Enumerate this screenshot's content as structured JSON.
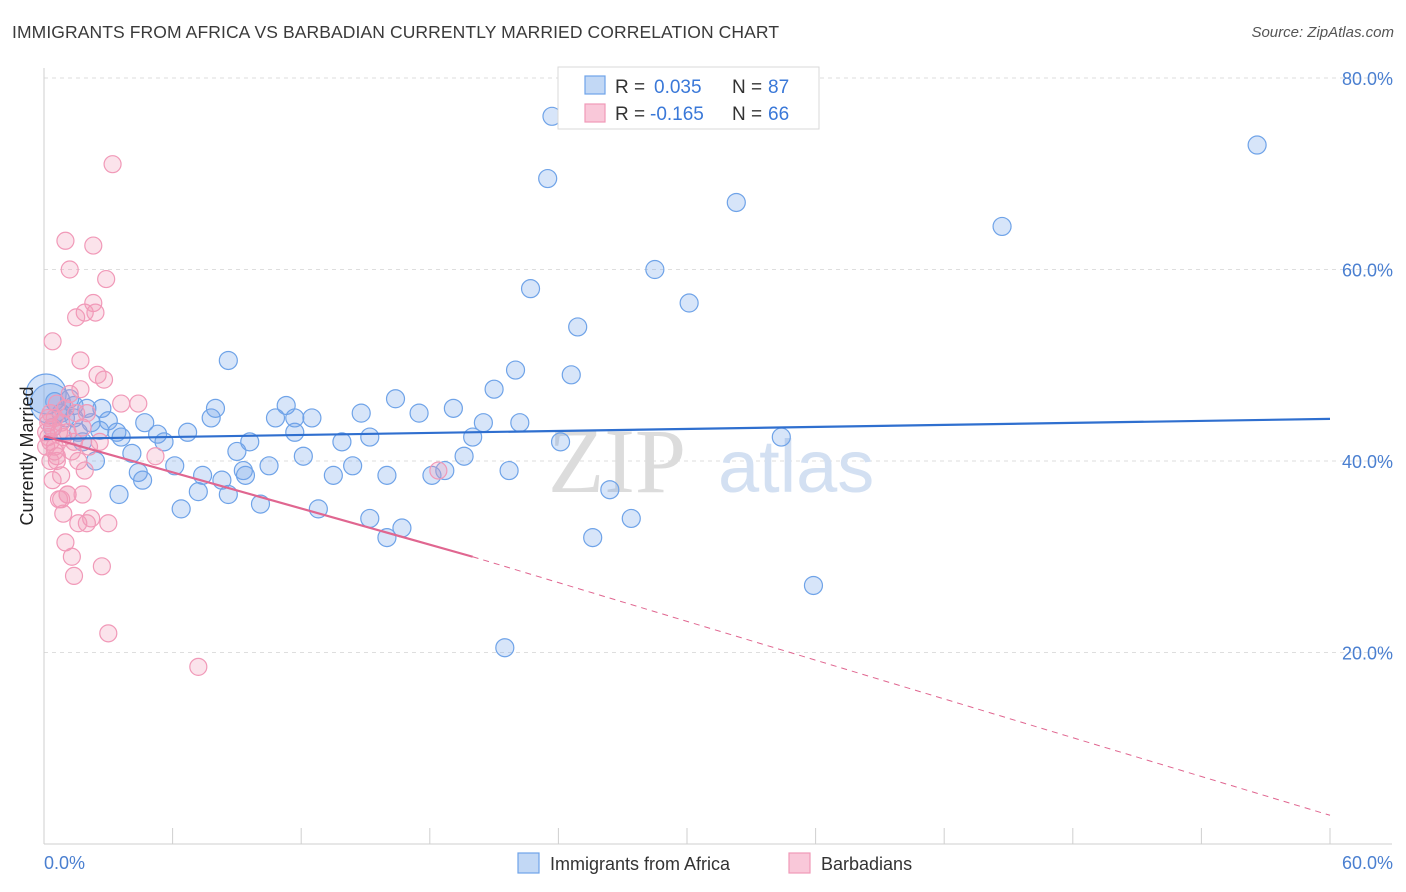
{
  "header": {
    "title": "IMMIGRANTS FROM AFRICA VS BARBADIAN CURRENTLY MARRIED CORRELATION CHART",
    "source": "Source: ZipAtlas.com"
  },
  "watermark": {
    "zip": "ZIP",
    "atlas": "atlas"
  },
  "legend": {
    "rows": [
      {
        "r_label": "R =",
        "r_value": "0.035",
        "n_label": "N =",
        "n_value": "87"
      },
      {
        "r_label": "R =",
        "r_value": "-0.165",
        "n_label": "N =",
        "n_value": "66"
      }
    ]
  },
  "chart_data": {
    "type": "scatter",
    "title": "IMMIGRANTS FROM AFRICA VS BARBADIAN CURRENTLY MARRIED CORRELATION CHART",
    "xlabel": "",
    "ylabel": "Currently Married",
    "xlim": [
      0,
      60
    ],
    "ylim": [
      0,
      80
    ],
    "x_tick_labels": [
      "0.0%",
      "60.0%"
    ],
    "y_ticks": [
      20,
      40,
      60,
      80
    ],
    "y_tick_labels": [
      "20.0%",
      "40.0%",
      "60.0%",
      "80.0%"
    ],
    "grid": true,
    "legend_position": "top-center",
    "colors": {
      "africa": "#6fa3e8",
      "africa_line": "#2f6fcf",
      "barbadian": "#f199b8",
      "barbadian_line": "#e06690"
    },
    "series": [
      {
        "name": "Immigrants from Africa",
        "color": "#6fa3e8",
        "x": [
          0.1,
          0.3,
          0.4,
          0.5,
          0.8,
          1.0,
          1.2,
          1.4,
          1.6,
          1.8,
          2.0,
          2.2,
          2.4,
          2.7,
          3.0,
          3.4,
          3.6,
          4.1,
          4.4,
          4.7,
          5.3,
          5.6,
          6.1,
          6.7,
          7.2,
          7.4,
          7.8,
          8.0,
          8.3,
          8.6,
          9.0,
          9.3,
          9.6,
          10.1,
          10.5,
          10.8,
          11.3,
          11.7,
          12.1,
          12.5,
          12.8,
          13.5,
          13.9,
          14.4,
          14.8,
          15.2,
          16.0,
          16.4,
          16.7,
          17.5,
          18.1,
          18.7,
          19.1,
          19.6,
          20.0,
          20.5,
          21.0,
          21.7,
          22.2,
          22.7,
          23.5,
          24.1,
          25.6,
          26.4,
          27.4,
          28.5,
          30.1,
          34.4,
          35.9,
          44.7,
          56.6,
          11.7,
          8.6,
          15.2,
          24.9,
          32.3,
          23.7,
          22.0,
          16.0,
          3.5,
          1.4,
          2.6,
          4.6,
          9.4,
          6.4,
          21.5,
          24.6
        ],
        "y": [
          47.0,
          46.0,
          43.5,
          46.2,
          45.0,
          44.5,
          46.5,
          45.8,
          43.0,
          42.0,
          45.5,
          44.0,
          40.0,
          45.5,
          44.2,
          43.0,
          42.5,
          40.8,
          38.8,
          44.0,
          42.8,
          42.0,
          39.5,
          43.0,
          36.8,
          38.5,
          44.5,
          45.5,
          38.0,
          36.5,
          41.0,
          39.0,
          42.0,
          35.5,
          39.5,
          44.5,
          45.8,
          43.0,
          40.5,
          44.5,
          35.0,
          38.5,
          42.0,
          39.5,
          45.0,
          34.0,
          38.5,
          46.5,
          33.0,
          45.0,
          38.5,
          39.0,
          45.5,
          40.5,
          42.5,
          44.0,
          47.5,
          39.0,
          44.0,
          58.0,
          69.5,
          42.0,
          32.0,
          37.0,
          34.0,
          60.0,
          56.5,
          42.5,
          27.0,
          64.5,
          73.0,
          44.5,
          50.5,
          42.5,
          54.0,
          67.0,
          76.0,
          49.5,
          32.0,
          36.5,
          44.5,
          43.2,
          38.0,
          38.5,
          35.0,
          20.5,
          49.0
        ],
        "fit_line": {
          "x": [
            0,
            60
          ],
          "y": [
            42.3,
            44.4
          ]
        }
      },
      {
        "name": "Barbadians",
        "color": "#f199b8",
        "x": [
          0.1,
          0.1,
          0.2,
          0.2,
          0.3,
          0.3,
          0.3,
          0.4,
          0.4,
          0.5,
          0.5,
          0.6,
          0.6,
          0.7,
          0.7,
          0.8,
          0.8,
          0.9,
          0.9,
          1.0,
          1.0,
          1.1,
          1.1,
          1.2,
          1.3,
          1.3,
          1.4,
          1.4,
          1.5,
          1.6,
          1.6,
          1.7,
          1.8,
          1.8,
          1.9,
          2.0,
          2.0,
          2.1,
          2.2,
          2.3,
          2.4,
          2.5,
          2.7,
          2.8,
          3.0,
          3.2,
          3.6,
          4.4,
          5.2,
          7.2,
          18.4,
          0.2,
          0.4,
          0.6,
          0.8,
          1.0,
          1.2,
          1.5,
          1.9,
          2.3,
          2.6,
          3.0,
          1.7,
          1.1,
          0.5,
          2.9
        ],
        "y": [
          43.0,
          41.5,
          44.0,
          42.5,
          45.0,
          42.0,
          40.0,
          43.5,
          38.0,
          44.5,
          41.5,
          46.0,
          40.0,
          43.0,
          36.0,
          44.0,
          38.5,
          42.5,
          34.5,
          45.5,
          31.5,
          43.0,
          36.5,
          47.0,
          41.0,
          30.0,
          42.0,
          28.0,
          45.0,
          40.0,
          33.5,
          47.5,
          43.5,
          36.5,
          39.0,
          45.0,
          33.5,
          41.5,
          34.0,
          56.5,
          55.5,
          49.0,
          29.0,
          48.5,
          22.0,
          71.0,
          46.0,
          46.0,
          40.5,
          18.5,
          39.0,
          44.5,
          52.5,
          40.5,
          36.0,
          63.0,
          60.0,
          55.0,
          55.5,
          62.5,
          42.0,
          33.5,
          50.5,
          36.5,
          41.0,
          59.0
        ],
        "fit_line": {
          "x": [
            0,
            20
          ],
          "y": [
            42.6,
            30.0
          ]
        },
        "fit_line_dashed": {
          "x": [
            20,
            60
          ],
          "y": [
            30.0,
            3.0
          ]
        }
      }
    ]
  }
}
